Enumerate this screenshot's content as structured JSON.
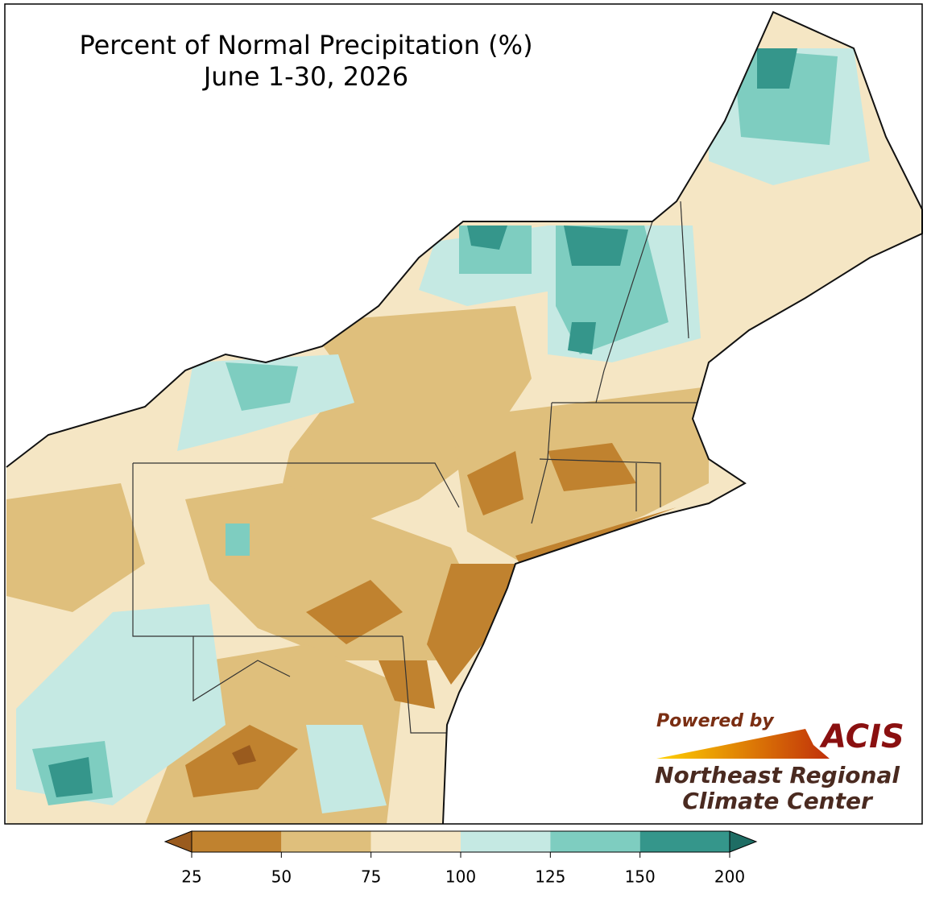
{
  "header": {
    "title": "Percent of Normal Precipitation (%)",
    "subtitle": "June 1-30, 2026"
  },
  "legend": {
    "ticks": [
      25,
      50,
      75,
      100,
      125,
      150,
      200
    ],
    "colors": [
      "#c0822f",
      "#dfbf7c",
      "#f5e6c4",
      "#c5e9e3",
      "#7ecdc0",
      "#35968b"
    ],
    "under_color": "#9a5b1e",
    "over_color": "#1e6d64"
  },
  "logo": {
    "powered_by": "Powered by",
    "name": "ACIS",
    "line1": "Northeast Regional",
    "line2": "Climate Center"
  }
}
